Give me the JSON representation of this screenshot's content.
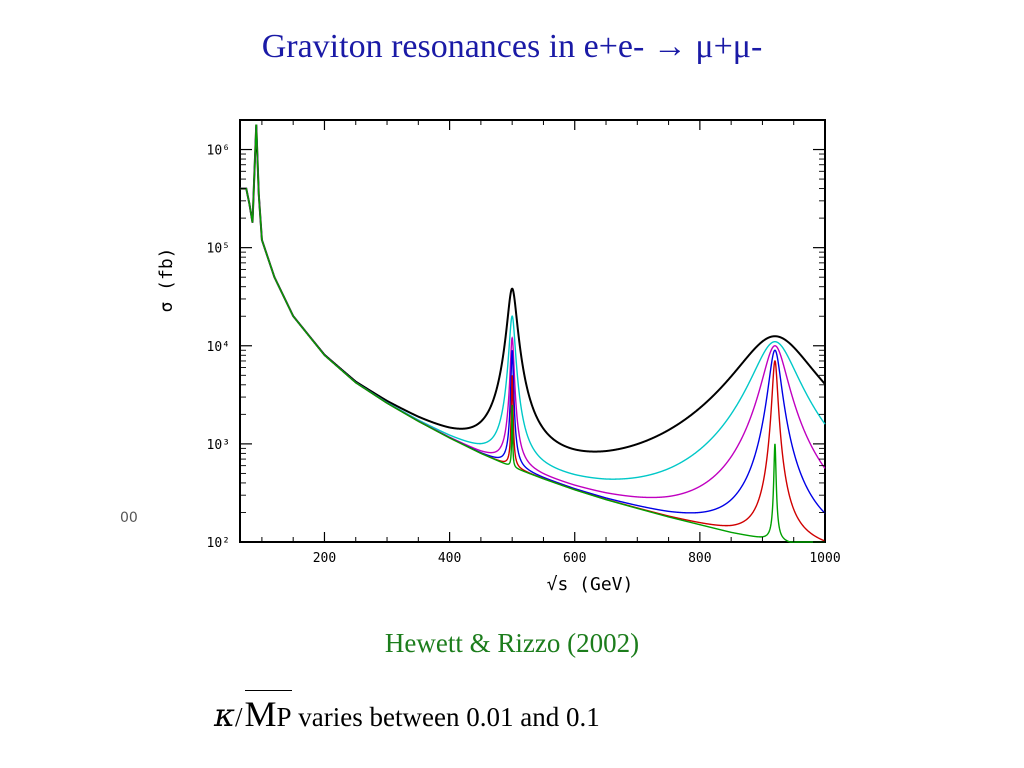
{
  "slide": {
    "title": "Graviton resonances in e+e- → μ+μ-",
    "citation": "Hewett & Rizzo (2002)",
    "footer": {
      "kappa_symbol": "κ",
      "slash": "/",
      "mp_main": "M",
      "mp_sub": "P",
      "text": " varies between  0.01 and 0.1"
    },
    "stray_fragment": "00"
  },
  "chart_data": {
    "type": "line",
    "title": "",
    "xlabel": "√s (GeV)",
    "ylabel": "σ (fb)",
    "xlim": [
      65,
      1000
    ],
    "ylim": [
      100,
      2000000
    ],
    "y_scale": "log",
    "x_ticks": [
      200,
      400,
      600,
      800,
      1000
    ],
    "x_tick_labels": [
      "200",
      "400",
      "600",
      "800",
      "1000"
    ],
    "y_ticks": [
      100,
      1000,
      10000,
      100000,
      1000000
    ],
    "y_tick_labels": [
      "10²",
      "10³",
      "10⁴",
      "10⁵",
      "10⁶"
    ],
    "grid": false,
    "legend": "none",
    "model": {
      "z_peak_gev": 91,
      "z_peak_fb": 1800000,
      "background_points": [
        [
          75,
          400000
        ],
        [
          80,
          280000
        ],
        [
          85,
          180000
        ],
        [
          91,
          1800000
        ],
        [
          95,
          350000
        ],
        [
          100,
          120000
        ],
        [
          120,
          50000
        ],
        [
          150,
          20000
        ],
        [
          200,
          8000
        ],
        [
          250,
          4200
        ],
        [
          300,
          2600
        ],
        [
          350,
          1700
        ],
        [
          400,
          1150
        ],
        [
          450,
          800
        ],
        [
          500,
          580
        ],
        [
          550,
          440
        ],
        [
          600,
          340
        ],
        [
          650,
          270
        ],
        [
          700,
          220
        ],
        [
          750,
          180
        ],
        [
          800,
          150
        ],
        [
          850,
          125
        ],
        [
          900,
          108
        ],
        [
          950,
          95
        ],
        [
          1000,
          85
        ]
      ],
      "resonances_gev": [
        500,
        920
      ]
    },
    "series": [
      {
        "color": "#000000",
        "peak_heights": [
          38000,
          12500
        ],
        "widths": [
          7,
          55
        ]
      },
      {
        "color": "#00c8c8",
        "peak_heights": [
          20000,
          11000
        ],
        "widths": [
          4.5,
          32
        ]
      },
      {
        "color": "#c000c0",
        "peak_heights": [
          12000,
          10000
        ],
        "widths": [
          2.8,
          18
        ]
      },
      {
        "color": "#0000e6",
        "peak_heights": [
          9000,
          9000
        ],
        "widths": [
          1.8,
          9
        ]
      },
      {
        "color": "#d00000",
        "peak_heights": [
          5000,
          7000
        ],
        "widths": [
          1.1,
          4
        ]
      },
      {
        "color": "#00a000",
        "peak_heights": [
          2500,
          1000
        ],
        "widths": [
          0.6,
          1.5
        ]
      }
    ]
  }
}
